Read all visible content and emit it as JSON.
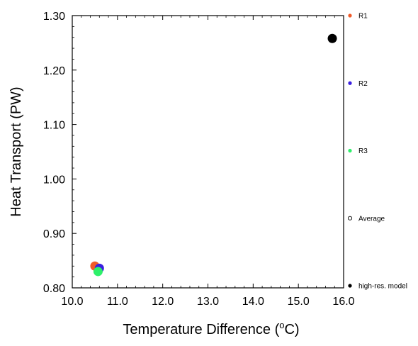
{
  "chart_data": {
    "type": "scatter",
    "xlabel_main": "Temperature Difference (",
    "xlabel_unit_sup": "o",
    "xlabel_unit_end": "C)",
    "ylabel": "Heat Transport (PW)",
    "xlim": [
      10.0,
      16.0
    ],
    "ylim": [
      0.8,
      1.3
    ],
    "x_ticks": [
      "10.0",
      "11.0",
      "12.0",
      "13.0",
      "14.0",
      "15.0",
      "16.0"
    ],
    "y_ticks": [
      "0.80",
      "0.90",
      "1.00",
      "1.10",
      "1.20",
      "1.30"
    ],
    "grid": false,
    "legend_position": "right",
    "points": [
      {
        "label": "R1",
        "x": 10.5,
        "y": 0.84,
        "color": "#f05a28",
        "filled": true
      },
      {
        "label": "R2",
        "x": 10.6,
        "y": 0.836,
        "color": "#3a1fe0",
        "filled": true
      },
      {
        "label": "R3",
        "x": 10.57,
        "y": 0.83,
        "color": "#2ef06a",
        "filled": true
      },
      {
        "label": "high-res. model",
        "x": 15.75,
        "y": 1.258,
        "color": "#000000",
        "filled": true
      }
    ],
    "legend": [
      {
        "label": "R1",
        "color": "#f05a28",
        "filled": true
      },
      {
        "label": "R2",
        "color": "#3a1fe0",
        "filled": true
      },
      {
        "label": "R3",
        "color": "#2ef06a",
        "filled": true
      },
      {
        "label": "Average",
        "color": "#000000",
        "filled": false
      },
      {
        "label": "high-res. model",
        "color": "#000000",
        "filled": true
      }
    ]
  }
}
